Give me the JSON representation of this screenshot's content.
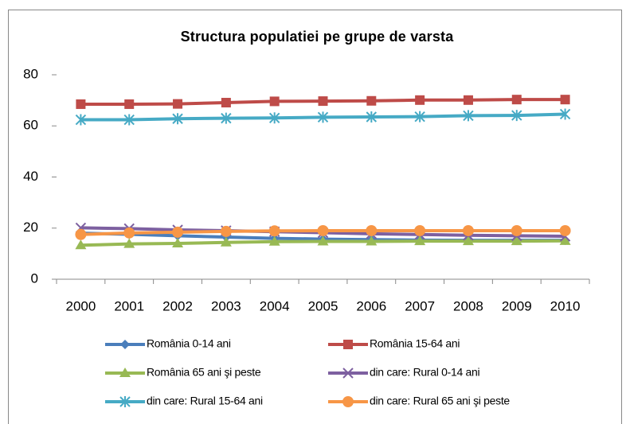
{
  "chart_data": {
    "type": "line",
    "title": "Structura populatiei pe grupe de varsta",
    "categories": [
      "2000",
      "2001",
      "2002",
      "2003",
      "2004",
      "2005",
      "2006",
      "2007",
      "2008",
      "2009",
      "2010"
    ],
    "ylim": [
      0,
      80
    ],
    "yticks": [
      0,
      20,
      40,
      60,
      80
    ],
    "grid": false,
    "series": [
      {
        "name": "România 0-14 ani",
        "color": "#4a7ebb",
        "marker": "diamond",
        "values": [
          18.0,
          17.6,
          17.0,
          16.5,
          16.0,
          15.7,
          15.5,
          15.3,
          15.2,
          15.2,
          15.2
        ]
      },
      {
        "name": "România 15-64 ani",
        "color": "#be4b48",
        "marker": "square",
        "values": [
          68.5,
          68.5,
          68.6,
          69.1,
          69.6,
          69.7,
          69.8,
          70.1,
          70.1,
          70.3,
          70.3
        ]
      },
      {
        "name": "România 65 ani şi peste",
        "color": "#98b954",
        "marker": "triangle",
        "values": [
          13.3,
          13.8,
          14.0,
          14.4,
          14.7,
          14.8,
          14.8,
          14.9,
          14.9,
          14.9,
          15.0
        ]
      },
      {
        "name": "din care: Rural 0-14 ani",
        "color": "#7d60a0",
        "marker": "x",
        "values": [
          20.1,
          19.8,
          19.3,
          19.0,
          18.6,
          18.2,
          17.8,
          17.5,
          17.2,
          17.0,
          16.8
        ]
      },
      {
        "name": "din care: Rural 15-64 ani",
        "color": "#46aac5",
        "marker": "star",
        "values": [
          62.4,
          62.4,
          62.8,
          63.0,
          63.1,
          63.4,
          63.5,
          63.6,
          64.0,
          64.1,
          64.6
        ]
      },
      {
        "name": "din care: Rural 65 ani şi peste",
        "color": "#f79646",
        "marker": "circle",
        "values": [
          17.5,
          18.1,
          18.4,
          18.7,
          18.9,
          19.0,
          19.0,
          19.0,
          19.0,
          19.0,
          19.0
        ]
      }
    ]
  }
}
